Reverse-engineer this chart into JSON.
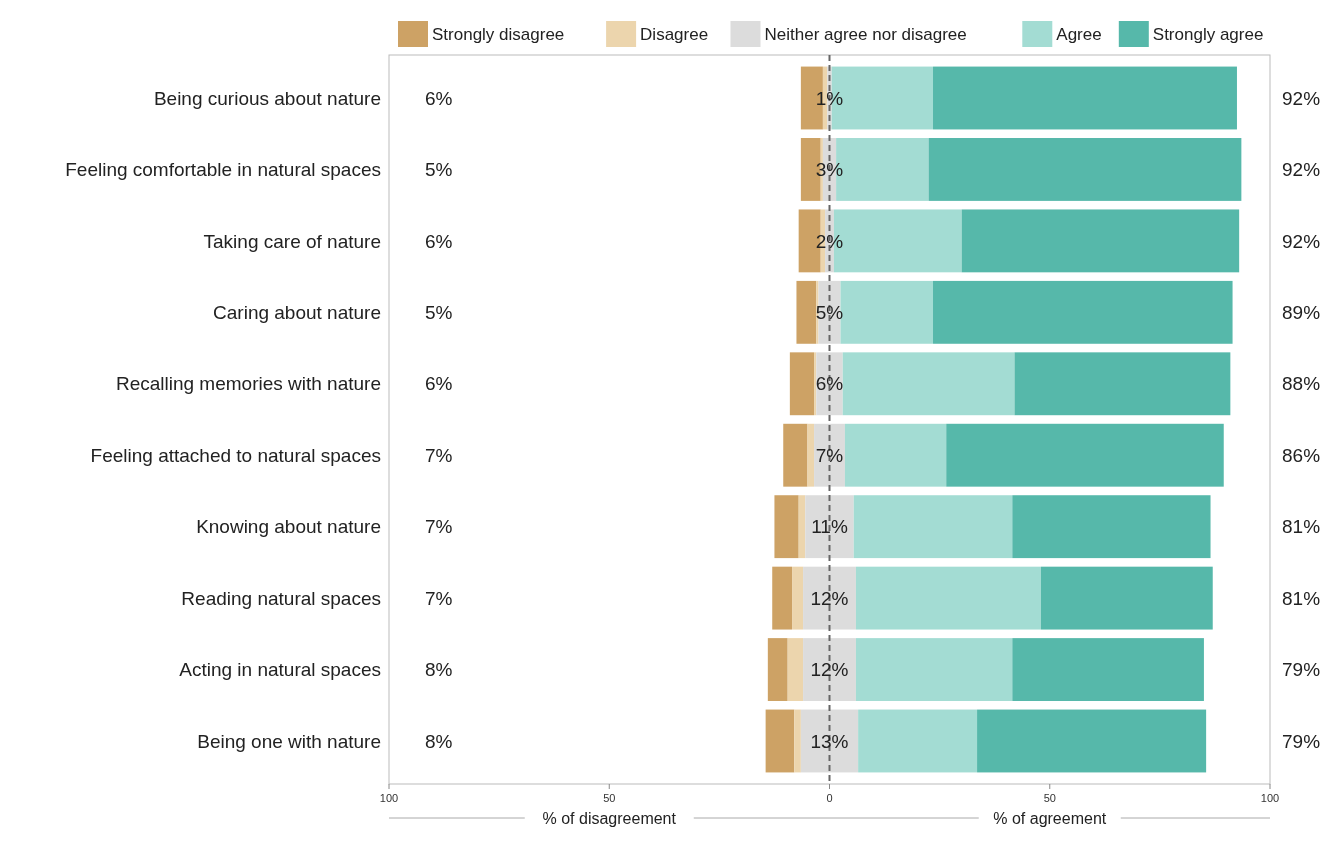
{
  "chart_data": {
    "type": "bar",
    "orientation": "horizontal",
    "categories": [
      "Being curious about nature",
      "Feeling comfortable in natural spaces",
      "Taking care of nature",
      "Caring about nature",
      "Recalling memories with nature",
      "Feeling attached to natural spaces",
      "Knowing about nature",
      "Reading natural spaces",
      "Acting in natural spaces",
      "Being one with nature"
    ],
    "series": [
      {
        "name": "Strongly disagree",
        "color": "#cda265",
        "base": [
          -6.5,
          -6.5,
          -7,
          -7.5,
          -9,
          -10.5,
          -12.5,
          -13,
          -14,
          -14.5
        ],
        "values": [
          5,
          4.5,
          5,
          4.5,
          5.5,
          5.5,
          5.5,
          4.5,
          4.5,
          6.5
        ]
      },
      {
        "name": "Disagree",
        "color": "#ecd5ad",
        "base": [
          -1.5,
          -2,
          -2,
          -3,
          -3.5,
          -5,
          -7,
          -8.5,
          -9.5,
          -8
        ],
        "values": [
          1,
          0.5,
          1,
          0.5,
          0.5,
          1.5,
          1.5,
          2.5,
          3.5,
          1.5
        ]
      },
      {
        "name": "Neither agree nor disagree",
        "color": "#dcdcdc",
        "base": [
          -0.5,
          -1.5,
          -1,
          -2.5,
          -3,
          -3.5,
          -5.5,
          -6,
          -6,
          -6.5
        ],
        "values": [
          1,
          3,
          2,
          5,
          6,
          7,
          11,
          12,
          12,
          13
        ],
        "value_labels": [
          "1%",
          "3%",
          "2%",
          "5%",
          "6%",
          "7%",
          "11%",
          "12%",
          "12%",
          "13%"
        ]
      },
      {
        "name": "Agree",
        "color": "#a3dcd3",
        "base": [
          0.5,
          1.5,
          1,
          2.5,
          3,
          3.5,
          5.5,
          6,
          6,
          6.5
        ],
        "values": [
          23,
          21,
          29,
          21,
          39,
          23,
          36,
          42,
          35.5,
          27
        ]
      },
      {
        "name": "Strongly agree",
        "color": "#56b8aa",
        "base": [
          23.5,
          22.5,
          30,
          23.5,
          42,
          26.5,
          41.5,
          48,
          41.5,
          33.5
        ],
        "values": [
          69,
          71,
          63,
          68,
          49,
          63,
          45,
          39,
          43.5,
          52
        ]
      }
    ],
    "xlim": [
      -100,
      100
    ],
    "xticks": [
      {
        "value": -100,
        "label": "100"
      },
      {
        "value": -50,
        "label": "50"
      },
      0,
      50,
      100
    ],
    "ref_lines": [
      {
        "axis": "x",
        "value": 0,
        "label": null,
        "color": "#666666",
        "line_style": "dashed"
      }
    ],
    "legend": "top",
    "annotations": [
      "% of disagreement",
      "% of agreement",
      "6%",
      "92%",
      "5%",
      "92%",
      "6%",
      "92%",
      "5%",
      "89%",
      "6%",
      "88%",
      "7%",
      "86%",
      "7%",
      "81%",
      "7%",
      "81%",
      "8%",
      "79%",
      "8%",
      "79%"
    ]
  }
}
